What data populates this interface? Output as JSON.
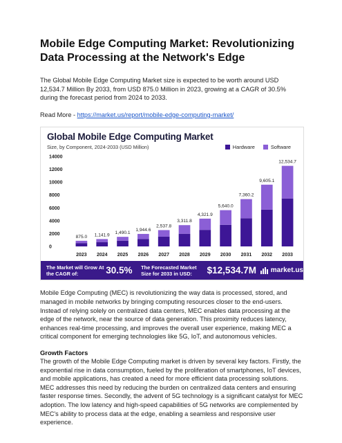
{
  "title": "Mobile Edge Computing Market: Revolutionizing Data Processing at the Network's Edge",
  "intro": "The Global Mobile Edge Computing Market size is expected to be worth around USD 12,534.7 Million By 2033, from USD 875.0 Million in 2023, growing at a CAGR of 30.5% during the forecast period from 2024 to 2033.",
  "read_more": {
    "prefix": "Read More - ",
    "link_text": " https://market.us/report/mobile-edge-computing-market/"
  },
  "infographic": {
    "title": "Global Mobile Edge Computing Market",
    "subtitle": "Size, by Component, 2024-2033 (USD Million)",
    "banner": {
      "cagr_label": "The Market will Grow At the CAGR of:",
      "cagr_value": "30.5%",
      "forecast_label": "The Forecasted Market Size for 2033 in USD:",
      "forecast_value": "$12,534.7M",
      "brand": "market.us"
    }
  },
  "chart_data": {
    "type": "bar",
    "stacked": true,
    "title": "Global Mobile Edge Computing Market",
    "subtitle": "Size, by Component, 2024-2033 (USD Million)",
    "categories": [
      "2023",
      "2024",
      "2025",
      "2026",
      "2027",
      "2028",
      "2029",
      "2030",
      "2031",
      "2032",
      "2033"
    ],
    "totals": [
      "875.0",
      "1,141.9",
      "1,490.1",
      "1,944.6",
      "2,537.8",
      "3,311.8",
      "4,321.9",
      "5,640.0",
      "7,360.2",
      "9,605.1",
      "12,534.7"
    ],
    "total_values": [
      875.0,
      1141.9,
      1490.1,
      1944.6,
      2537.8,
      3311.8,
      4321.9,
      5640.0,
      7360.2,
      9605.1,
      12534.7
    ],
    "series": [
      {
        "name": "Hardware",
        "color": "#3d1696",
        "values": [
          520,
          680,
          890,
          1160,
          1510,
          1970,
          2570,
          3360,
          4380,
          5720,
          7460
        ]
      },
      {
        "name": "Software",
        "color": "#8b5fd6",
        "values": [
          355,
          462,
          600,
          785,
          1028,
          1342,
          1752,
          2280,
          2980,
          3885,
          5075
        ]
      }
    ],
    "y_ticks": [
      "0",
      "2000",
      "4000",
      "6000",
      "8000",
      "10000",
      "12000",
      "14000"
    ],
    "ylim": [
      0,
      14000
    ],
    "legend_position": "top-right",
    "grid": false
  },
  "body_paragraph": "Mobile Edge Computing (MEC) is revolutionizing the way data is processed, stored, and managed in mobile networks by bringing computing resources closer to the end-users. Instead of relying solely on centralized data centers, MEC enables data processing at the edge of the network, near the source of data generation. This proximity reduces latency, enhances real-time processing, and improves the overall user experience, making MEC a critical component for emerging technologies like 5G, IoT, and autonomous vehicles.",
  "growth_heading": "Growth Factors",
  "growth_paragraph": "The growth of the Mobile Edge Computing market is driven by several key factors. Firstly, the exponential rise in data consumption, fueled by the proliferation of smartphones, IoT devices, and mobile applications, has created a need for more efficient data processing solutions. MEC addresses this need by reducing the burden on centralized data centers and ensuring faster response times. Secondly, the advent of 5G technology is a significant catalyst for MEC adoption. The low latency and high-speed capabilities of 5G networks are complemented by MEC's ability to process data at the edge, enabling a seamless and responsive user experience."
}
